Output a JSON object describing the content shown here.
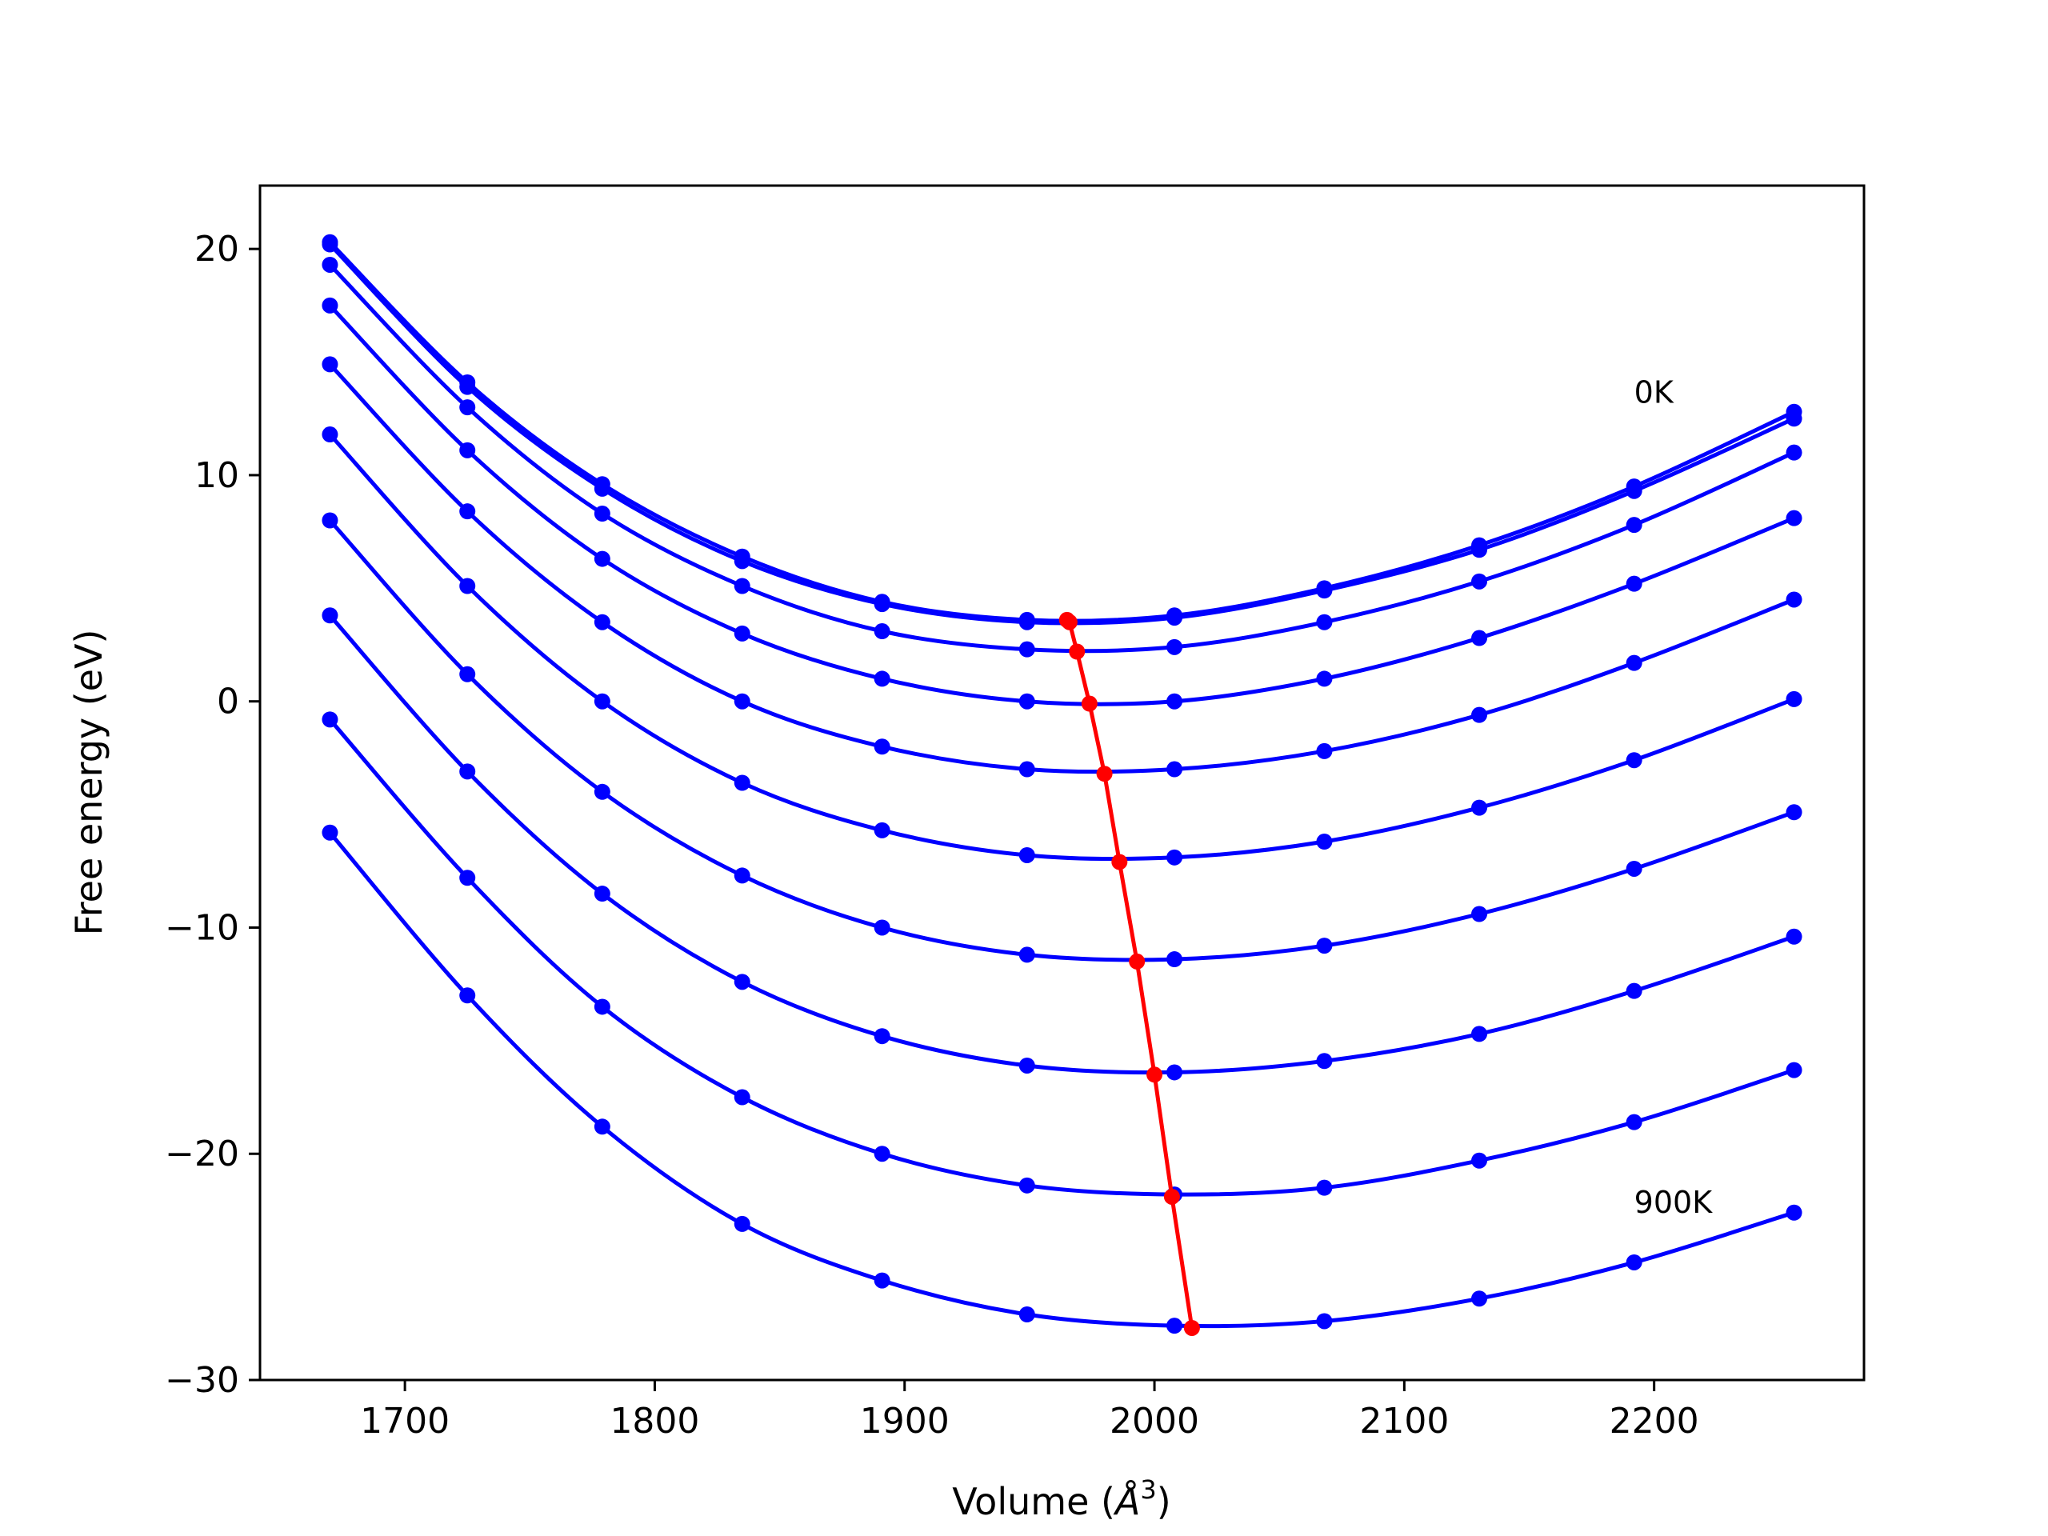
{
  "chart_data": {
    "type": "line",
    "xlabel": "Volume (",
    "xlabel_unit": "Å",
    "xlabel_exp": "3",
    "xlabel_close": ")",
    "ylabel": "Free energy (eV)",
    "xlim": [
      1642,
      2284
    ],
    "ylim": [
      -30,
      22.8
    ],
    "xticks": [
      1700,
      1800,
      1900,
      2000,
      2100,
      2200
    ],
    "yticks": [
      20,
      10,
      0,
      -10,
      -20,
      -30
    ],
    "xtick_labels": [
      "1700",
      "1800",
      "1900",
      "2000",
      "2100",
      "2200"
    ],
    "ytick_labels": [
      "20",
      "10",
      "0",
      "−10",
      "−20",
      "−30"
    ],
    "grid": false,
    "colors": {
      "curves": "#0000ff",
      "minima": "#ff0000",
      "frame": "#000000"
    },
    "annotations": [
      {
        "text": "0K",
        "x": 1192,
        "y": 13.2
      },
      {
        "text": "900K",
        "x": 1192,
        "y": -22.6
      }
    ],
    "annotation_positions": [
      {
        "x": 2192,
        "y": 13.2
      },
      {
        "x": 2192,
        "y": -22.6
      }
    ],
    "x": [
      1670,
      1725,
      1779,
      1835,
      1891,
      1949,
      2008,
      2068,
      2130,
      2192,
      2256
    ],
    "series": [
      {
        "values": [
          20.3,
          14.1,
          9.6,
          6.4,
          4.4,
          3.6,
          3.8,
          5.0,
          6.9,
          9.5,
          12.8
        ]
      },
      {
        "values": [
          20.2,
          13.9,
          9.4,
          6.2,
          4.3,
          3.5,
          3.7,
          4.9,
          6.7,
          9.3,
          12.5
        ]
      },
      {
        "values": [
          19.3,
          13.0,
          8.3,
          5.1,
          3.1,
          2.3,
          2.4,
          3.5,
          5.3,
          7.8,
          11.0
        ]
      },
      {
        "values": [
          17.5,
          11.1,
          6.3,
          3.0,
          1.0,
          0.0,
          0.0,
          1.0,
          2.8,
          5.2,
          8.1
        ]
      },
      {
        "values": [
          14.9,
          8.4,
          3.5,
          0.0,
          -2.0,
          -3.0,
          -3.0,
          -2.2,
          -0.6,
          1.7,
          4.5
        ]
      },
      {
        "values": [
          11.8,
          5.1,
          0.0,
          -3.6,
          -5.7,
          -6.8,
          -6.9,
          -6.2,
          -4.7,
          -2.6,
          0.1
        ]
      },
      {
        "values": [
          8.0,
          1.2,
          -4.0,
          -7.7,
          -10.0,
          -11.2,
          -11.4,
          -10.8,
          -9.4,
          -7.4,
          -4.9
        ]
      },
      {
        "values": [
          3.8,
          -3.1,
          -8.5,
          -12.4,
          -14.8,
          -16.1,
          -16.4,
          -15.9,
          -14.7,
          -12.8,
          -10.4
        ]
      },
      {
        "values": [
          -0.8,
          -7.8,
          -13.5,
          -17.5,
          -20.0,
          -21.4,
          -21.8,
          -21.5,
          -20.3,
          -18.6,
          -16.3
        ]
      },
      {
        "values": [
          -5.8,
          -13.0,
          -18.8,
          -23.1,
          -25.6,
          -27.1,
          -27.6,
          -27.4,
          -26.4,
          -24.8,
          -22.6
        ]
      }
    ],
    "minima": {
      "x": [
        1965,
        1966,
        1969,
        1974,
        1980,
        1986,
        1993,
        2000,
        2007,
        2015
      ],
      "y": [
        3.6,
        3.5,
        2.2,
        -0.1,
        -3.2,
        -7.1,
        -11.5,
        -16.5,
        -21.9,
        -27.7
      ]
    }
  }
}
